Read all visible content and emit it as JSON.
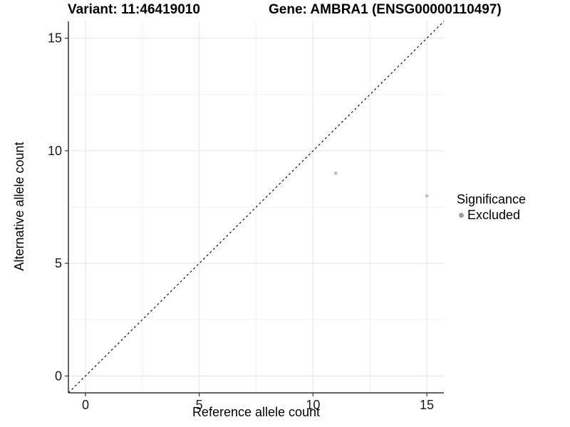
{
  "titles": {
    "variant": "Variant: 11:46419010",
    "gene": "Gene: AMBRA1 (ENSG00000110497)"
  },
  "legend": {
    "title": "Significance",
    "items": [
      {
        "label": "Excluded",
        "color": "#9e9e9e",
        "marker": "circle-icon"
      }
    ]
  },
  "colors": {
    "background": "#ffffff",
    "axis_line": "#333333",
    "tick_mark": "#333333",
    "tick_label": "#1a1a1a",
    "grid_major": "#e4e4e4",
    "grid_minor": "#f0f0f0",
    "identity_line": "#111111",
    "point": "#c4c4c4"
  },
  "chart_data": {
    "type": "scatter",
    "titles": [
      "Variant: 11:46419010",
      "Gene: AMBRA1 (ENSG00000110497)"
    ],
    "xlabel": "Reference allele count",
    "ylabel": "Alternative allele count",
    "xlim": [
      -0.75,
      15.75
    ],
    "ylim": [
      -0.75,
      15.75
    ],
    "x_ticks": [
      0,
      5,
      10,
      15
    ],
    "y_ticks": [
      0,
      5,
      10,
      15
    ],
    "x_minor_gridlines": [
      2.5,
      7.5,
      12.5
    ],
    "y_minor_gridlines": [
      2.5,
      7.5,
      12.5
    ],
    "grid": true,
    "series": [
      {
        "name": "Excluded",
        "color": "#c4c4c4",
        "points": [
          {
            "x": 11,
            "y": 9
          },
          {
            "x": 15,
            "y": 8
          }
        ]
      }
    ],
    "reference_line": {
      "type": "identity",
      "slope": 1,
      "intercept": 0,
      "style": "dashed",
      "color": "#111111"
    },
    "legend": {
      "title": "Significance",
      "position": "right",
      "entries": [
        "Excluded"
      ]
    }
  }
}
